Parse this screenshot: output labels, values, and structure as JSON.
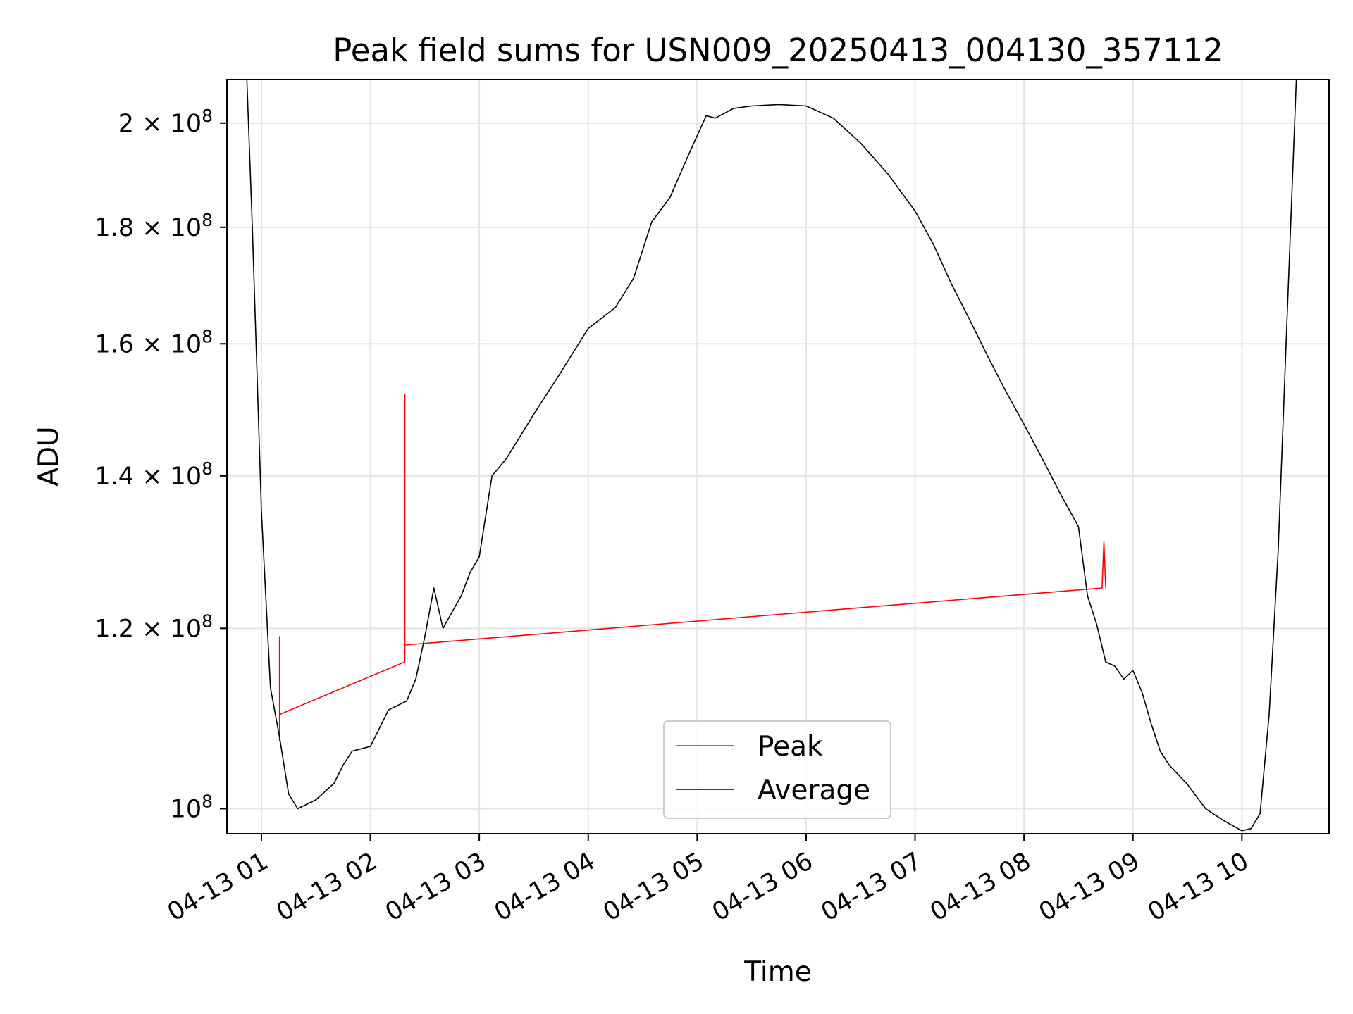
{
  "chart_data": {
    "type": "line",
    "title": "Peak field sums for USN009_20250413_004130_357112",
    "xlabel": "Time",
    "ylabel": "ADU",
    "y_scale": "log",
    "grid": true,
    "legend_position": "bottom-center",
    "xlim": [
      "2025-04-13 00:41",
      "2025-04-13 10:48"
    ],
    "ylim": [
      97500000,
      209000000
    ],
    "x_ticks": [
      {
        "value": "2025-04-13 01:00",
        "label": "04-13 01"
      },
      {
        "value": "2025-04-13 02:00",
        "label": "04-13 02"
      },
      {
        "value": "2025-04-13 03:00",
        "label": "04-13 03"
      },
      {
        "value": "2025-04-13 04:00",
        "label": "04-13 04"
      },
      {
        "value": "2025-04-13 05:00",
        "label": "04-13 05"
      },
      {
        "value": "2025-04-13 06:00",
        "label": "04-13 06"
      },
      {
        "value": "2025-04-13 07:00",
        "label": "04-13 07"
      },
      {
        "value": "2025-04-13 08:00",
        "label": "04-13 08"
      },
      {
        "value": "2025-04-13 09:00",
        "label": "04-13 09"
      },
      {
        "value": "2025-04-13 10:00",
        "label": "04-13 10"
      }
    ],
    "y_ticks": [
      {
        "value": 100000000,
        "label": "10",
        "exp": "8"
      },
      {
        "value": 120000000,
        "label": "1.2 × 10",
        "exp": "8"
      },
      {
        "value": 140000000,
        "label": "1.4 × 10",
        "exp": "8"
      },
      {
        "value": 160000000,
        "label": "1.6 × 10",
        "exp": "8"
      },
      {
        "value": 180000000,
        "label": "1.8 × 10",
        "exp": "8"
      },
      {
        "value": 200000000,
        "label": "2 × 10",
        "exp": "8"
      }
    ],
    "series": [
      {
        "name": "Peak",
        "color": "#ff0000",
        "x": [
          "2025-04-13 01:10",
          "2025-04-13 01:10",
          "2025-04-13 01:10",
          "2025-04-13 02:19",
          "2025-04-13 02:19",
          "2025-04-13 02:19",
          "2025-04-13 08:43",
          "2025-04-13 08:44",
          "2025-04-13 08:45"
        ],
        "y": [
          107000000,
          119000000,
          110000000,
          116000000,
          152000000,
          118000000,
          125000000,
          131000000,
          125000000
        ]
      },
      {
        "name": "Average",
        "color": "#000000",
        "x": [
          "2025-04-13 00:41",
          "2025-04-13 00:52",
          "2025-04-13 00:55",
          "2025-04-13 01:00",
          "2025-04-13 01:05",
          "2025-04-13 01:10",
          "2025-04-13 01:15",
          "2025-04-13 01:20",
          "2025-04-13 01:30",
          "2025-04-13 01:40",
          "2025-04-13 01:45",
          "2025-04-13 01:50",
          "2025-04-13 02:00",
          "2025-04-13 02:10",
          "2025-04-13 02:20",
          "2025-04-13 02:25",
          "2025-04-13 02:30",
          "2025-04-13 02:35",
          "2025-04-13 02:40",
          "2025-04-13 02:50",
          "2025-04-13 02:55",
          "2025-04-13 03:00",
          "2025-04-13 03:07",
          "2025-04-13 03:15",
          "2025-04-13 03:30",
          "2025-04-13 03:45",
          "2025-04-13 04:00",
          "2025-04-13 04:15",
          "2025-04-13 04:25",
          "2025-04-13 04:35",
          "2025-04-13 04:45",
          "2025-04-13 04:55",
          "2025-04-13 05:05",
          "2025-04-13 05:10",
          "2025-04-13 05:20",
          "2025-04-13 05:30",
          "2025-04-13 05:45",
          "2025-04-13 06:00",
          "2025-04-13 06:15",
          "2025-04-13 06:30",
          "2025-04-13 06:45",
          "2025-04-13 07:00",
          "2025-04-13 07:10",
          "2025-04-13 07:20",
          "2025-04-13 07:30",
          "2025-04-13 07:40",
          "2025-04-13 07:50",
          "2025-04-13 08:00",
          "2025-04-13 08:10",
          "2025-04-13 08:20",
          "2025-04-13 08:30",
          "2025-04-13 08:35",
          "2025-04-13 08:40",
          "2025-04-13 08:45",
          "2025-04-13 08:50",
          "2025-04-13 08:55",
          "2025-04-13 09:00",
          "2025-04-13 09:05",
          "2025-04-13 09:10",
          "2025-04-13 09:15",
          "2025-04-13 09:20",
          "2025-04-13 09:30",
          "2025-04-13 09:40",
          "2025-04-13 09:50",
          "2025-04-13 10:00",
          "2025-04-13 10:05",
          "2025-04-13 10:10",
          "2025-04-13 10:15",
          "2025-04-13 10:20",
          "2025-04-13 10:25",
          "2025-04-13 10:30",
          "2025-04-13 10:48"
        ],
        "y": [
          209000000,
          209000000,
          180000000,
          135000000,
          113000000,
          107500000,
          101500000,
          100000000,
          100900000,
          102600000,
          104500000,
          106000000,
          106500000,
          110500000,
          111500000,
          114000000,
          119000000,
          125000000,
          120000000,
          124000000,
          127000000,
          129000000,
          140000000,
          142500000,
          149000000,
          155500000,
          162500000,
          166000000,
          171000000,
          181000000,
          185500000,
          193500000,
          201500000,
          201000000,
          203000000,
          203500000,
          203800000,
          203500000,
          201000000,
          196000000,
          190000000,
          183000000,
          177000000,
          170000000,
          164000000,
          158000000,
          152500000,
          147500000,
          142500000,
          137500000,
          133000000,
          124000000,
          120500000,
          116000000,
          115500000,
          114000000,
          115000000,
          112500000,
          109000000,
          106000000,
          104500000,
          102500000,
          100000000,
          98800000,
          97800000,
          98000000,
          99500000,
          110000000,
          130000000,
          165000000,
          209000000,
          209000000
        ]
      }
    ]
  }
}
